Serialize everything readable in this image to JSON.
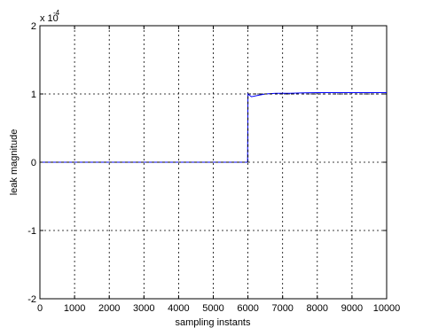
{
  "chart_data": {
    "type": "line",
    "title": "",
    "xlabel": "sampling instants",
    "ylabel": "leak magnitude",
    "y_multiplier_base": "x 10",
    "y_multiplier_exp": "-4",
    "xlim": [
      0,
      10000
    ],
    "ylim": [
      -2,
      2
    ],
    "x_ticks": [
      0,
      1000,
      2000,
      3000,
      4000,
      5000,
      6000,
      7000,
      8000,
      9000,
      10000
    ],
    "x_tick_labels": [
      "0",
      "1000",
      "2000",
      "3000",
      "4000",
      "5000",
      "6000",
      "7000",
      "8000",
      "9000",
      "10000"
    ],
    "y_ticks": [
      -2,
      -1,
      0,
      1,
      2
    ],
    "y_tick_labels": [
      "-2",
      "-1",
      "0",
      "1",
      "2"
    ],
    "grid": true,
    "series": [
      {
        "style": "solid",
        "color": "#0000ff",
        "x": [
          0,
          5990,
          5990,
          6000,
          6100,
          6300,
          6500,
          6800,
          7200,
          7600,
          8000,
          8500,
          9000,
          9500,
          10000
        ],
        "y": [
          0.0,
          0.0,
          0.0,
          1.0,
          0.96,
          0.98,
          1.0,
          1.01,
          1.01,
          1.015,
          1.02,
          1.02,
          1.02,
          1.02,
          1.02
        ]
      },
      {
        "style": "dashed",
        "color": "#000000",
        "x": [
          0,
          6000,
          6000,
          10000
        ],
        "y": [
          0.0,
          0.0,
          1.0,
          1.0
        ]
      }
    ]
  },
  "colors": {
    "background": "#ffffff",
    "axes": "#000000",
    "grid": "#000000",
    "estimate_line": "#0000ff",
    "true_line": "#000000"
  }
}
